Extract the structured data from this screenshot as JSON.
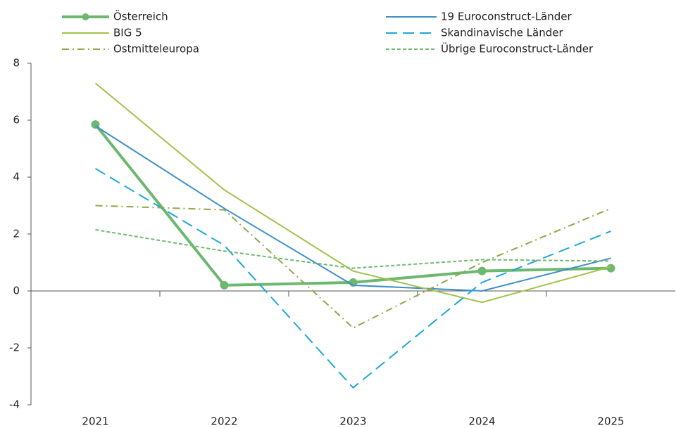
{
  "chart_data": {
    "type": "line",
    "categories": [
      "2021",
      "2022",
      "2023",
      "2024",
      "2025"
    ],
    "ylim": [
      -4,
      8
    ],
    "yticks": [
      -4,
      -2,
      0,
      2,
      4,
      6,
      8
    ],
    "series": [
      {
        "name": "Österreich",
        "color": "#6cb86f",
        "dash": "solid",
        "marker": true,
        "values": [
          5.85,
          0.2,
          0.3,
          0.7,
          0.8
        ]
      },
      {
        "name": "19 Euroconstruct-Länder",
        "color": "#3f8fc6",
        "dash": "solid",
        "marker": false,
        "values": [
          5.8,
          2.9,
          0.2,
          0.0,
          1.15
        ]
      },
      {
        "name": "BIG 5",
        "color": "#a3c24a",
        "dash": "solid",
        "marker": false,
        "values": [
          7.3,
          3.55,
          0.7,
          -0.4,
          0.85
        ]
      },
      {
        "name": "Skandinavische Länder",
        "color": "#1da8da",
        "dash": "dashed",
        "marker": false,
        "values": [
          4.3,
          1.6,
          -3.4,
          0.3,
          2.1
        ]
      },
      {
        "name": "Ostmitteleuropa",
        "color": "#8fa848",
        "dash": "dashdot",
        "marker": false,
        "values": [
          3.0,
          2.85,
          -1.3,
          1.0,
          2.9
        ]
      },
      {
        "name": "Übrige Euroconstruct-Länder",
        "color": "#6dbb6d",
        "dash": "dotted",
        "marker": false,
        "values": [
          2.15,
          1.4,
          0.8,
          1.1,
          1.05
        ]
      }
    ]
  }
}
